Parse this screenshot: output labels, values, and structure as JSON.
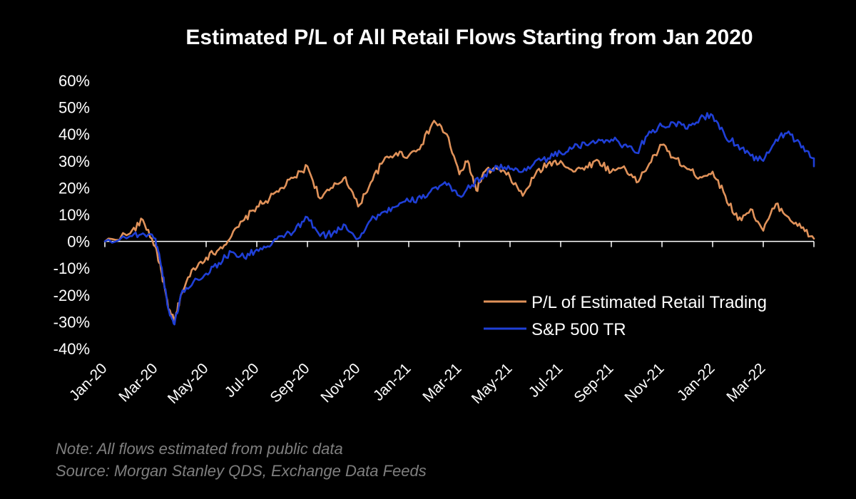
{
  "colors": {
    "background": "#000000",
    "retail": "#e0925a",
    "sp500": "#1f3fd6",
    "axis": "#ffffff",
    "note": "#7f7f7f"
  },
  "footer": {
    "note": "Note:  All flows estimated from public data",
    "source": "Source: Morgan Stanley QDS, Exchange Data Feeds"
  },
  "chart_data": {
    "type": "line",
    "title": "Estimated P/L of All Retail Flows Starting from Jan 2020",
    "xlabel": "",
    "ylabel": "",
    "ylim": [
      -40,
      60
    ],
    "y_unit": "%",
    "y_ticks": [
      "60%",
      "50%",
      "40%",
      "30%",
      "20%",
      "10%",
      "0%",
      "-10%",
      "-20%",
      "-30%",
      "-40%"
    ],
    "x_tick_labels": [
      "Jan-20",
      "Mar-20",
      "May-20",
      "Jul-20",
      "Sep-20",
      "Nov-20",
      "Jan-21",
      "Mar-21",
      "May-21",
      "Jul-21",
      "Sep-21",
      "Nov-21",
      "Jan-22",
      "Mar-22"
    ],
    "x_range": [
      "Jan-20",
      "May-22"
    ],
    "grid": false,
    "legend_position": "lower-right",
    "series": [
      {
        "name": "P/L of Estimated Retail Trading",
        "color": "#e0925a",
        "points": [
          [
            "Jan-20",
            0
          ],
          [
            "Feb-20",
            3
          ],
          [
            "Feb-20",
            8
          ],
          [
            "Mar-20",
            -2
          ],
          [
            "Mar-20",
            -12
          ],
          [
            "Mar-20",
            -25
          ],
          [
            "Mar-20",
            -30
          ],
          [
            "Apr-20",
            -20
          ],
          [
            "Apr-20",
            -10
          ],
          [
            "May-20",
            -6
          ],
          [
            "May-20",
            -3
          ],
          [
            "Jun-20",
            2
          ],
          [
            "Jun-20",
            8
          ],
          [
            "Jul-20",
            13
          ],
          [
            "Jul-20",
            16
          ],
          [
            "Aug-20",
            20
          ],
          [
            "Aug-20",
            24
          ],
          [
            "Sep-20",
            28
          ],
          [
            "Sep-20",
            16
          ],
          [
            "Oct-20",
            20
          ],
          [
            "Oct-20",
            24
          ],
          [
            "Nov-20",
            13
          ],
          [
            "Nov-20",
            22
          ],
          [
            "Dec-20",
            30
          ],
          [
            "Dec-20",
            33
          ],
          [
            "Jan-21",
            32
          ],
          [
            "Jan-21",
            36
          ],
          [
            "Feb-21",
            45
          ],
          [
            "Feb-21",
            40
          ],
          [
            "Mar-21",
            25
          ],
          [
            "Mar-21",
            30
          ],
          [
            "Mar-21",
            19
          ],
          [
            "Apr-21",
            26
          ],
          [
            "Apr-21",
            27
          ],
          [
            "May-21",
            24
          ],
          [
            "May-21",
            17
          ],
          [
            "Jun-21",
            25
          ],
          [
            "Jun-21",
            29
          ],
          [
            "Jul-21",
            30
          ],
          [
            "Jul-21",
            26
          ],
          [
            "Aug-21",
            28
          ],
          [
            "Aug-21",
            30
          ],
          [
            "Sep-21",
            26
          ],
          [
            "Sep-21",
            28
          ],
          [
            "Oct-21",
            22
          ],
          [
            "Oct-21",
            29
          ],
          [
            "Nov-21",
            36
          ],
          [
            "Nov-21",
            31
          ],
          [
            "Dec-21",
            27
          ],
          [
            "Dec-21",
            24
          ],
          [
            "Jan-22",
            26
          ],
          [
            "Jan-22",
            17
          ],
          [
            "Feb-22",
            8
          ],
          [
            "Feb-22",
            12
          ],
          [
            "Mar-22",
            4
          ],
          [
            "Mar-22",
            14
          ],
          [
            "Apr-22",
            9
          ],
          [
            "Apr-22",
            5
          ],
          [
            "May-22",
            1
          ]
        ]
      },
      {
        "name": "S&P 500 TR",
        "color": "#1f3fd6",
        "points": [
          [
            "Jan-20",
            0
          ],
          [
            "Feb-20",
            2
          ],
          [
            "Feb-20",
            3
          ],
          [
            "Mar-20",
            1
          ],
          [
            "Mar-20",
            -10
          ],
          [
            "Mar-20",
            -25
          ],
          [
            "Mar-20",
            -31
          ],
          [
            "Apr-20",
            -20
          ],
          [
            "Apr-20",
            -15
          ],
          [
            "May-20",
            -12
          ],
          [
            "May-20",
            -8
          ],
          [
            "Jun-20",
            -4
          ],
          [
            "Jun-20",
            -6
          ],
          [
            "Jul-20",
            -3
          ],
          [
            "Jul-20",
            -2
          ],
          [
            "Aug-20",
            2
          ],
          [
            "Aug-20",
            4
          ],
          [
            "Sep-20",
            9
          ],
          [
            "Sep-20",
            2
          ],
          [
            "Oct-20",
            3
          ],
          [
            "Oct-20",
            6
          ],
          [
            "Nov-20",
            1
          ],
          [
            "Nov-20",
            8
          ],
          [
            "Dec-20",
            11
          ],
          [
            "Dec-20",
            13
          ],
          [
            "Jan-21",
            15
          ],
          [
            "Jan-21",
            16
          ],
          [
            "Feb-21",
            20
          ],
          [
            "Feb-21",
            21
          ],
          [
            "Mar-21",
            17
          ],
          [
            "Mar-21",
            21
          ],
          [
            "Apr-21",
            25
          ],
          [
            "Apr-21",
            28
          ],
          [
            "May-21",
            27
          ],
          [
            "May-21",
            26
          ],
          [
            "Jun-21",
            30
          ],
          [
            "Jun-21",
            31
          ],
          [
            "Jul-21",
            33
          ],
          [
            "Jul-21",
            35
          ],
          [
            "Aug-21",
            36
          ],
          [
            "Aug-21",
            38
          ],
          [
            "Sep-21",
            38
          ],
          [
            "Sep-21",
            36
          ],
          [
            "Oct-21",
            33
          ],
          [
            "Oct-21",
            41
          ],
          [
            "Nov-21",
            43
          ],
          [
            "Nov-21",
            44
          ],
          [
            "Dec-21",
            42
          ],
          [
            "Dec-21",
            46
          ],
          [
            "Jan-22",
            47
          ],
          [
            "Jan-22",
            39
          ],
          [
            "Feb-22",
            36
          ],
          [
            "Feb-22",
            32
          ],
          [
            "Mar-22",
            30
          ],
          [
            "Mar-22",
            38
          ],
          [
            "Apr-22",
            41
          ],
          [
            "Apr-22",
            35
          ],
          [
            "May-22",
            31
          ],
          [
            "May-22",
            28
          ]
        ]
      }
    ]
  }
}
